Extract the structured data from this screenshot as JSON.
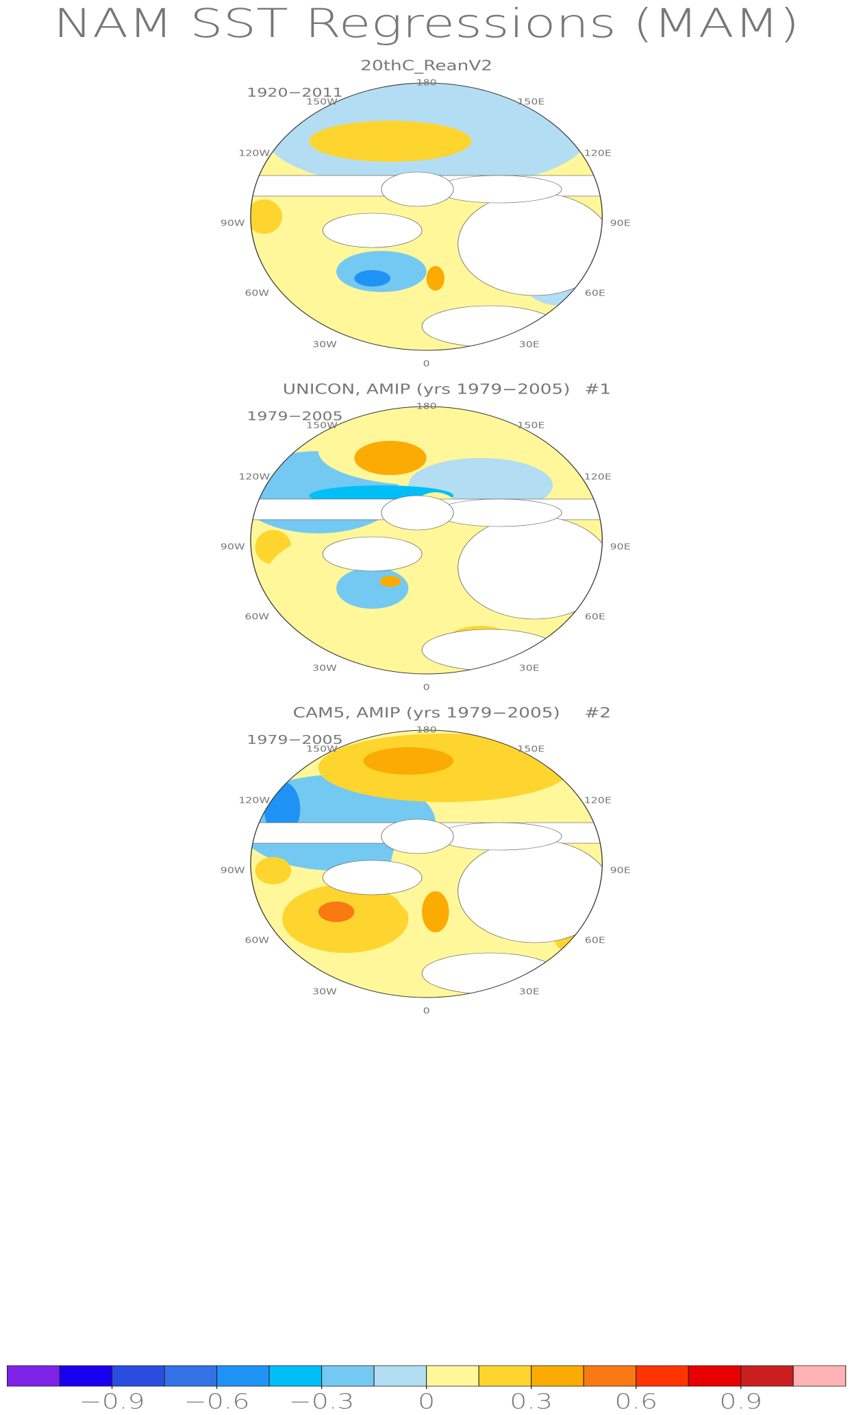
{
  "title": "NAM SST Regressions (MAM)",
  "longitude_labels": [
    "180",
    "150E",
    "120E",
    "90E",
    "60E",
    "30E",
    "0",
    "30W",
    "60W",
    "90W",
    "120W",
    "150W"
  ],
  "panels": [
    {
      "title": "20thC_ReanV2",
      "period": "1920−2011"
    },
    {
      "title": "UNICON, AMIP (yrs 1979−2005)",
      "period": "1979−2005",
      "number": "#1"
    },
    {
      "title": "CAM5, AMIP (yrs 1979−2005)",
      "period": "1979−2005",
      "number": "#2"
    }
  ],
  "colorbar": {
    "colors": [
      "#7f22e8",
      "#1a00f0",
      "#2a4de0",
      "#3372e6",
      "#1f93f5",
      "#00bff7",
      "#74c9f2",
      "#b3ddf2",
      "#fff79a",
      "#fdd52e",
      "#fbab02",
      "#f97a12",
      "#ff3400",
      "#e80000",
      "#cb1f1f",
      "#ffb3b3"
    ],
    "lim": [
      -1.2,
      1.2
    ],
    "ticks": [
      {
        "value": -0.9,
        "label": "−0.9"
      },
      {
        "value": -0.6,
        "label": "−0.6"
      },
      {
        "value": -0.3,
        "label": "−0.3"
      },
      0,
      0.3,
      0.6,
      0.9
    ]
  }
}
